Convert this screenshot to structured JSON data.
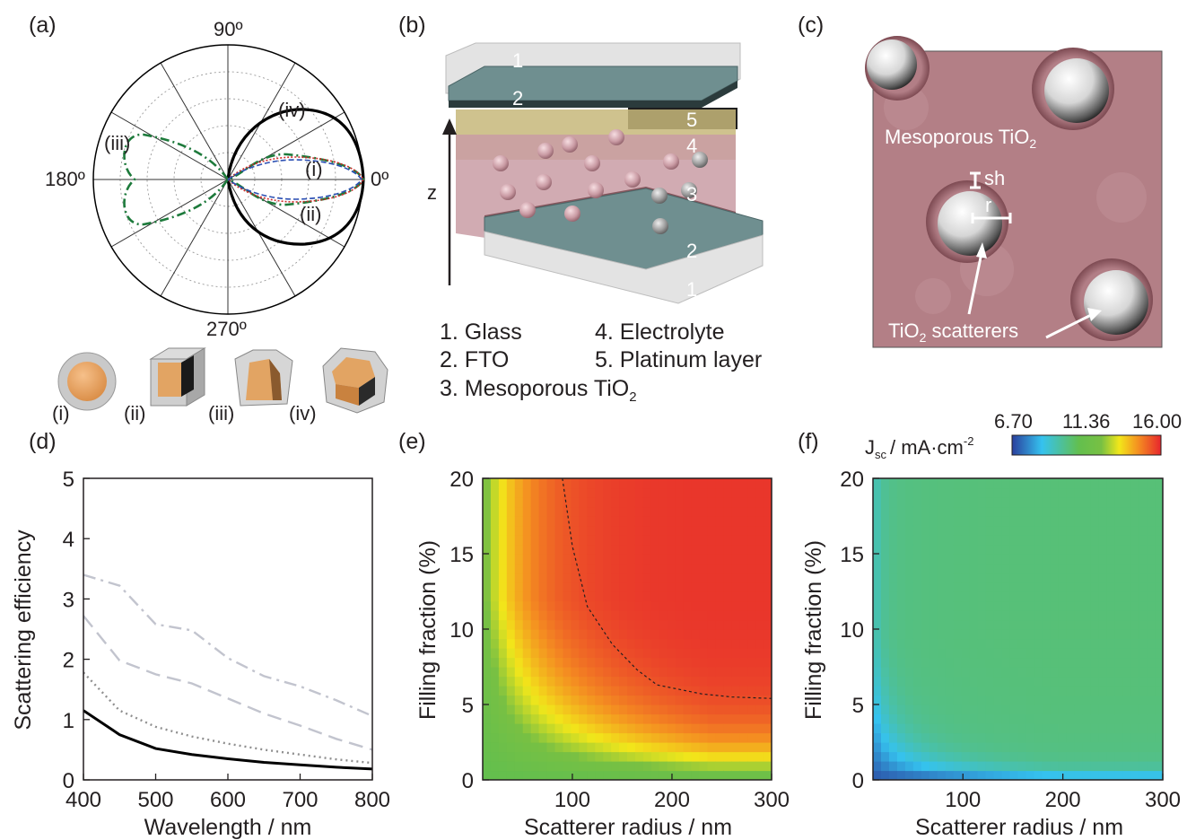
{
  "panel_labels": [
    "(a)",
    "(b)",
    "(c)",
    "(d)",
    "(e)",
    "(f)"
  ],
  "panel_a": {
    "angle_labels": [
      "90º",
      "180º",
      "0º",
      "270º"
    ],
    "curve_labels": [
      "(i)",
      "(ii)",
      "(iii)",
      "(iv)"
    ],
    "shape_labels": [
      "(i)",
      "(ii)",
      "(iii)",
      "(iv)"
    ]
  },
  "panel_b": {
    "axis_label": "z",
    "layer_numbers": [
      "1",
      "2",
      "5",
      "4",
      "3",
      "2",
      "1"
    ],
    "legend": [
      "1. Glass",
      "2. FTO",
      "3. Mesoporous TiO",
      "4. Electrolyte",
      "5. Platinum layer"
    ],
    "legend_sub": "2"
  },
  "panel_c": {
    "label_mesoporous": "Mesoporous TiO",
    "label_scatterers_pre": "TiO",
    "label_scatterers_post": " scatterers",
    "sub": "2",
    "label_sh": "sh",
    "label_r": "r"
  },
  "colorbar": {
    "label_pre": "J",
    "label_sub": "sc",
    "label_main": "/ mA·cm",
    "label_sup": "-2",
    "ticks": [
      "6.70",
      "11.36",
      "16.00"
    ]
  },
  "chart_data": [
    {
      "panel": "(d)",
      "type": "line",
      "xlabel": "Wavelength / nm",
      "ylabel": "Scattering efficiency",
      "xlim": [
        400,
        800
      ],
      "ylim": [
        0,
        5
      ],
      "x_ticks": [
        "400",
        "500",
        "600",
        "700",
        "800"
      ],
      "y_ticks": [
        "0",
        "1",
        "2",
        "3",
        "4",
        "5"
      ],
      "x": [
        400,
        450,
        500,
        550,
        600,
        650,
        700,
        750,
        800
      ],
      "series": [
        {
          "style": "solid",
          "color": "#000000",
          "values": [
            1.15,
            0.75,
            0.52,
            0.42,
            0.35,
            0.29,
            0.25,
            0.21,
            0.18
          ]
        },
        {
          "style": "dotted",
          "color": "#8f8f8f",
          "values": [
            1.78,
            1.15,
            0.88,
            0.72,
            0.6,
            0.5,
            0.42,
            0.34,
            0.28
          ]
        },
        {
          "style": "dashed",
          "color": "#c2c4ce",
          "values": [
            2.72,
            1.98,
            1.75,
            1.6,
            1.35,
            1.1,
            0.9,
            0.68,
            0.5
          ]
        },
        {
          "style": "dashdot",
          "color": "#c2c4ce",
          "values": [
            3.4,
            3.22,
            2.58,
            2.48,
            2.02,
            1.72,
            1.55,
            1.32,
            1.06
          ]
        }
      ]
    },
    {
      "panel": "(e)",
      "type": "heatmap",
      "xlabel": "Scatterer radius / nm",
      "ylabel": "Filling fraction (%)",
      "xlim": [
        10,
        300
      ],
      "ylim": [
        0,
        20
      ],
      "x_ticks": [
        "100",
        "200",
        "300"
      ],
      "y_ticks": [
        "0",
        "5",
        "10",
        "15",
        "20"
      ],
      "zlim": [
        6.7,
        16.0
      ],
      "contour_dashed": [
        [
          90,
          20
        ],
        [
          100,
          15.5
        ],
        [
          115,
          11.5
        ],
        [
          140,
          9
        ],
        [
          165,
          7.3
        ],
        [
          185,
          6.3
        ],
        [
          230,
          5.7
        ],
        [
          260,
          5.5
        ],
        [
          300,
          5.4
        ]
      ]
    },
    {
      "panel": "(f)",
      "type": "heatmap",
      "xlabel": "Scatterer radius / nm",
      "ylabel": "Filling fraction (%)",
      "xlim": [
        10,
        300
      ],
      "ylim": [
        0,
        20
      ],
      "x_ticks": [
        "100",
        "200",
        "300"
      ],
      "y_ticks": [
        "0",
        "5",
        "10",
        "15",
        "20"
      ],
      "zlim": [
        6.7,
        16.0
      ]
    }
  ]
}
